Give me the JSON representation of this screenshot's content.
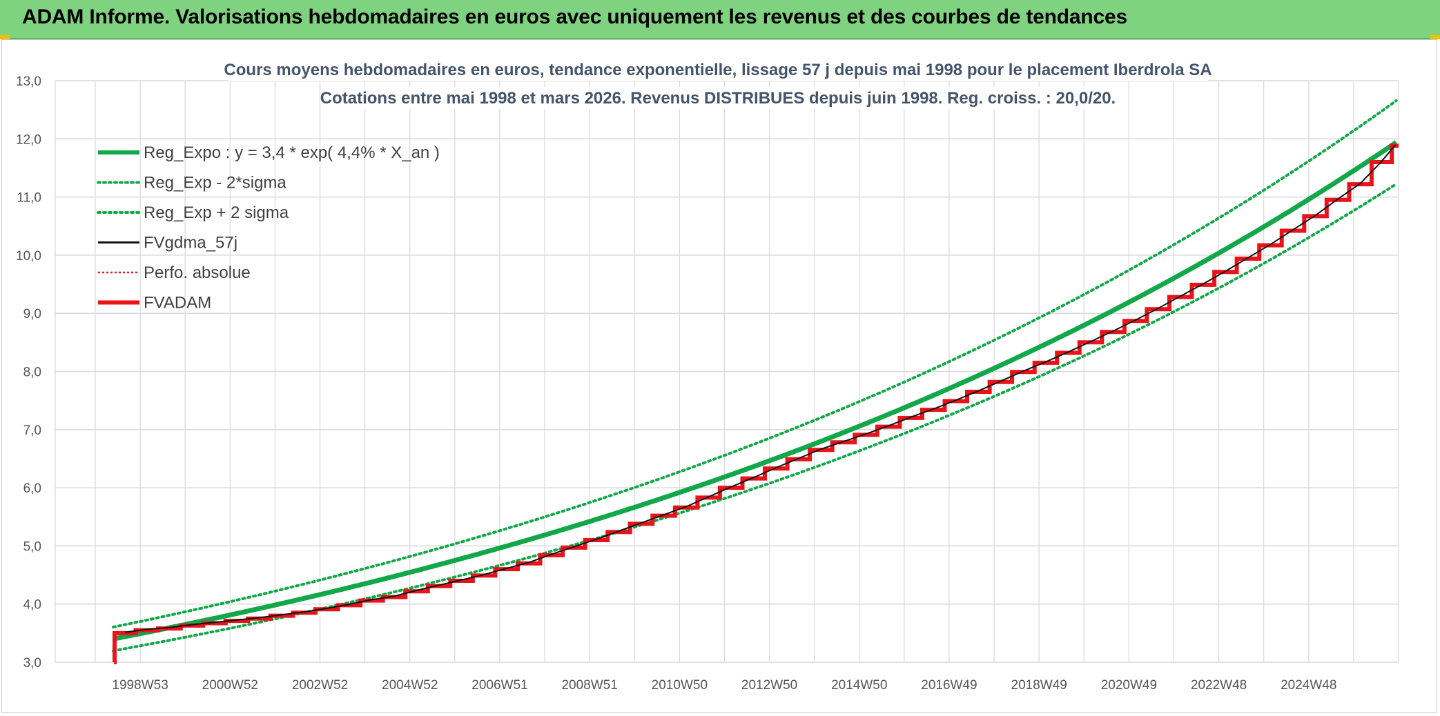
{
  "banner": {
    "title": "ADAM Informe. Valorisations hebdomadaires en euros avec uniquement les revenus et des courbes de tendances"
  },
  "colors": {
    "banner_bg": "#7fd27f",
    "reg_expo": "#12a84a",
    "fvadam": "#e8141a",
    "fvgdma": "#111111",
    "perfo": "#e8141a",
    "grid": "#d9d9d9"
  },
  "chart_data": {
    "type": "line",
    "title_lines": [
      "Cours moyens hebdomadaires en euros, tendance exponentielle, lissage 57 j depuis mai 1998 pour le placement Iberdrola SA",
      "Cotations entre mai 1998 et mars 2026. Revenus DISTRIBUES depuis juin 1998. Reg. croiss. : 20,0/20."
    ],
    "x_range": [
      "1998-05",
      "2026-03"
    ],
    "ylim": [
      3.0,
      13.0
    ],
    "y_ticks": [
      "3,0",
      "4,0",
      "5,0",
      "6,0",
      "7,0",
      "8,0",
      "9,0",
      "10,0",
      "11,0",
      "12,0",
      "13,0"
    ],
    "x_ticks": [
      {
        "label": "1998W53",
        "t": 1999.0
      },
      {
        "label": "2000W52",
        "t": 2001.0
      },
      {
        "label": "2002W52",
        "t": 2003.0
      },
      {
        "label": "2004W52",
        "t": 2005.0
      },
      {
        "label": "2006W51",
        "t": 2007.0
      },
      {
        "label": "2008W51",
        "t": 2009.0
      },
      {
        "label": "2010W50",
        "t": 2011.0
      },
      {
        "label": "2012W50",
        "t": 2013.0
      },
      {
        "label": "2014W50",
        "t": 2015.0
      },
      {
        "label": "2016W49",
        "t": 2017.0
      },
      {
        "label": "2018W49",
        "t": 2019.0
      },
      {
        "label": "2020W49",
        "t": 2021.0
      },
      {
        "label": "2022W48",
        "t": 2023.0
      },
      {
        "label": "2024W48",
        "t": 2025.0
      }
    ],
    "legend_position": "top-left",
    "grid": true,
    "regression": {
      "a": 3.4,
      "rate": 0.044,
      "t0": 1998.4,
      "sigma_band": 0.06
    },
    "series": [
      {
        "name": "Reg_Expo : y = 3,4 * exp( 4,4% *  X_an )",
        "style": "solid-thick",
        "color": "#12a84a"
      },
      {
        "name": "Reg_Exp - 2*sigma",
        "style": "dotted",
        "color": "#12a84a"
      },
      {
        "name": "Reg_Exp + 2 sigma",
        "style": "dotted",
        "color": "#12a84a"
      },
      {
        "name": "FVgdma_57j",
        "style": "solid",
        "color": "#111111"
      },
      {
        "name": "Perfo. absolue",
        "style": "dotted-thin",
        "color": "#e8141a"
      },
      {
        "name": "FVADAM",
        "style": "solid-thick",
        "color": "#e8141a"
      }
    ],
    "fvadam_steps": [
      {
        "t": 1998.42,
        "v": 3.0
      },
      {
        "t": 1998.43,
        "v": 3.5
      },
      {
        "t": 1998.9,
        "v": 3.55
      },
      {
        "t": 1999.4,
        "v": 3.58
      },
      {
        "t": 1999.9,
        "v": 3.63
      },
      {
        "t": 2000.4,
        "v": 3.67
      },
      {
        "t": 2000.9,
        "v": 3.71
      },
      {
        "t": 2001.4,
        "v": 3.75
      },
      {
        "t": 2001.9,
        "v": 3.8
      },
      {
        "t": 2002.4,
        "v": 3.85
      },
      {
        "t": 2002.9,
        "v": 3.91
      },
      {
        "t": 2003.4,
        "v": 3.98
      },
      {
        "t": 2003.9,
        "v": 4.06
      },
      {
        "t": 2004.4,
        "v": 4.12
      },
      {
        "t": 2004.9,
        "v": 4.22
      },
      {
        "t": 2005.4,
        "v": 4.31
      },
      {
        "t": 2005.9,
        "v": 4.4
      },
      {
        "t": 2006.4,
        "v": 4.49
      },
      {
        "t": 2006.9,
        "v": 4.6
      },
      {
        "t": 2007.4,
        "v": 4.7
      },
      {
        "t": 2007.9,
        "v": 4.84
      },
      {
        "t": 2008.4,
        "v": 4.97
      },
      {
        "t": 2008.9,
        "v": 5.1
      },
      {
        "t": 2009.4,
        "v": 5.24
      },
      {
        "t": 2009.9,
        "v": 5.38
      },
      {
        "t": 2010.4,
        "v": 5.52
      },
      {
        "t": 2010.9,
        "v": 5.66
      },
      {
        "t": 2011.4,
        "v": 5.83
      },
      {
        "t": 2011.9,
        "v": 6.0
      },
      {
        "t": 2012.4,
        "v": 6.16
      },
      {
        "t": 2012.9,
        "v": 6.33
      },
      {
        "t": 2013.4,
        "v": 6.49
      },
      {
        "t": 2013.9,
        "v": 6.65
      },
      {
        "t": 2014.4,
        "v": 6.78
      },
      {
        "t": 2014.9,
        "v": 6.91
      },
      {
        "t": 2015.4,
        "v": 7.05
      },
      {
        "t": 2015.9,
        "v": 7.2
      },
      {
        "t": 2016.4,
        "v": 7.34
      },
      {
        "t": 2016.9,
        "v": 7.49
      },
      {
        "t": 2017.4,
        "v": 7.65
      },
      {
        "t": 2017.9,
        "v": 7.82
      },
      {
        "t": 2018.4,
        "v": 7.99
      },
      {
        "t": 2018.9,
        "v": 8.15
      },
      {
        "t": 2019.4,
        "v": 8.32
      },
      {
        "t": 2019.9,
        "v": 8.5
      },
      {
        "t": 2020.4,
        "v": 8.68
      },
      {
        "t": 2020.9,
        "v": 8.87
      },
      {
        "t": 2021.4,
        "v": 9.07
      },
      {
        "t": 2021.9,
        "v": 9.28
      },
      {
        "t": 2022.4,
        "v": 9.49
      },
      {
        "t": 2022.9,
        "v": 9.71
      },
      {
        "t": 2023.4,
        "v": 9.94
      },
      {
        "t": 2023.9,
        "v": 10.17
      },
      {
        "t": 2024.4,
        "v": 10.42
      },
      {
        "t": 2024.9,
        "v": 10.67
      },
      {
        "t": 2025.4,
        "v": 10.95
      },
      {
        "t": 2025.9,
        "v": 11.22
      },
      {
        "t": 2026.4,
        "v": 11.6
      },
      {
        "t": 2026.85,
        "v": 11.88
      },
      {
        "t": 2027.0,
        "v": 11.88
      }
    ]
  }
}
